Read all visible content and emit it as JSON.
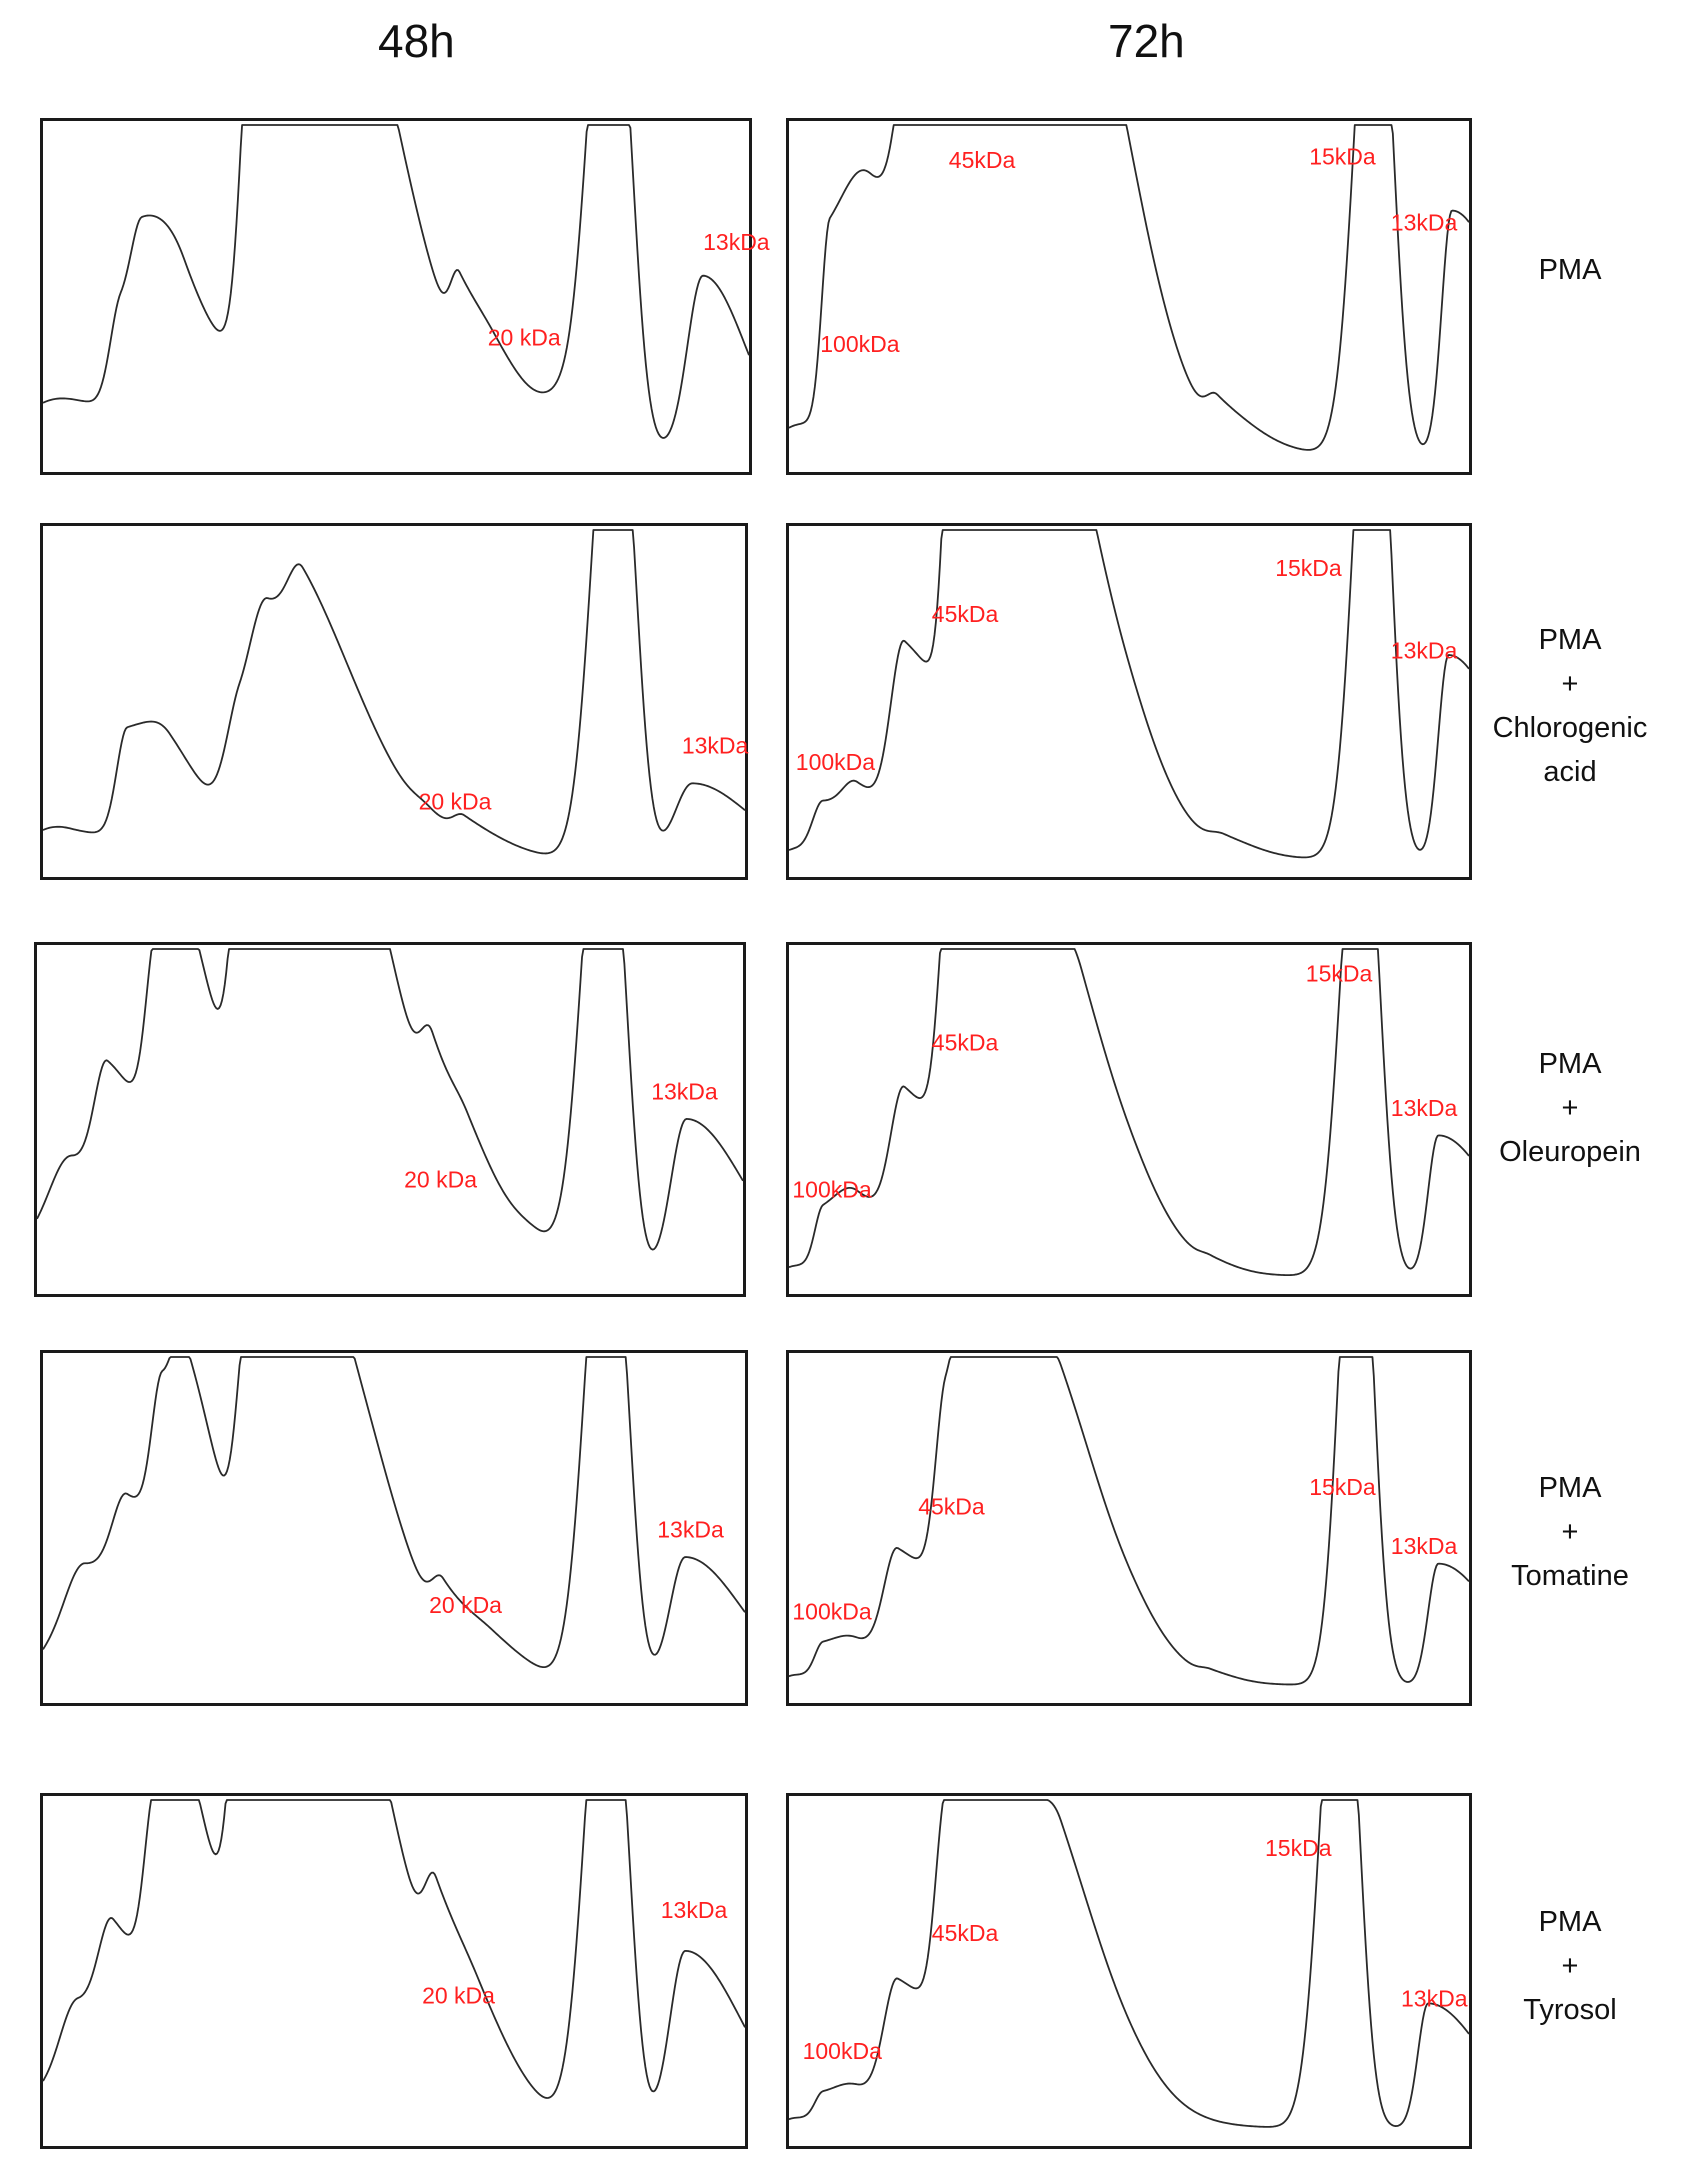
{
  "columns": {
    "h48": "48h",
    "h72": "72h"
  },
  "rows": [
    {
      "label": [
        "PMA"
      ]
    },
    {
      "label": [
        "PMA",
        "+",
        "Chlorogenic",
        "acid"
      ]
    },
    {
      "label": [
        "PMA",
        "+",
        "Oleuropein"
      ]
    },
    {
      "label": [
        "PMA",
        "+",
        "Tomatine"
      ]
    },
    {
      "label": [
        "PMA",
        "+",
        "Tyrosol"
      ]
    }
  ],
  "chart_data": [
    {
      "type": "line",
      "title": "48h - PMA",
      "xlim": [
        0,
        100
      ],
      "ylim": [
        0,
        100
      ],
      "peaks": [
        [
          0,
          6,
          2,
          4
        ],
        [
          7,
          14,
          8,
          12
        ],
        [
          11,
          30,
          1.5,
          6
        ],
        [
          14,
          24,
          1.5,
          5
        ],
        [
          20,
          30,
          4,
          10
        ],
        [
          29.5,
          78,
          1.5,
          14
        ],
        [
          32,
          72,
          2.5,
          13
        ],
        [
          38.5,
          66,
          1.5,
          12
        ],
        [
          48,
          7,
          3,
          4
        ],
        [
          59,
          22,
          1.2,
          8
        ],
        [
          64,
          4,
          3,
          5
        ],
        [
          74,
          10,
          3,
          7
        ],
        [
          79,
          100,
          2.5,
          2
        ],
        [
          82,
          100,
          2.5,
          2
        ],
        [
          93.5,
          54,
          2.2,
          6
        ]
      ],
      "labels": [
        {
          "text": "20 kDa",
          "x": 63,
          "y": 33
        },
        {
          "text": "13kDa",
          "x": 93.5,
          "y": 62
        }
      ]
    },
    {
      "type": "line",
      "title": "72h - PMA",
      "xlim": [
        0,
        100
      ],
      "ylim": [
        0,
        100
      ],
      "peaks": [
        [
          1,
          8,
          3,
          3
        ],
        [
          6,
          58,
          1.2,
          10
        ],
        [
          12,
          36,
          4,
          8
        ],
        [
          18,
          70,
          2,
          10
        ],
        [
          24,
          100,
          2.2,
          14
        ],
        [
          28,
          60,
          3,
          12
        ],
        [
          37,
          96,
          3.5,
          10
        ],
        [
          43,
          30,
          3,
          8
        ],
        [
          52,
          6,
          3,
          5
        ],
        [
          63,
          10,
          1.5,
          6
        ],
        [
          85,
          100,
          2.5,
          2
        ],
        [
          87.5,
          100,
          2.5,
          2
        ],
        [
          97.5,
          74,
          1.5,
          8
        ]
      ],
      "labels": [
        {
          "text": "100kDa",
          "x": 4.6,
          "y": 31
        },
        {
          "text": "45kDa",
          "x": 23.5,
          "y": 87
        },
        {
          "text": "15kDa",
          "x": 76.5,
          "y": 88
        },
        {
          "text": "13kDa",
          "x": 88.5,
          "y": 68
        }
      ]
    },
    {
      "type": "line",
      "title": "48h - PMA + Chlorogenic acid",
      "xlim": [
        0,
        100
      ],
      "ylim": [
        0,
        100
      ],
      "peaks": [
        [
          0,
          3,
          2,
          3
        ],
        [
          4,
          8,
          5,
          12
        ],
        [
          12,
          32,
          1.5,
          7
        ],
        [
          18,
          12,
          3,
          8
        ],
        [
          28,
          32,
          2,
          10
        ],
        [
          32,
          45,
          2.5,
          12
        ],
        [
          37,
          25,
          2,
          10
        ],
        [
          55,
          3,
          2,
          4
        ],
        [
          60,
          7,
          1.5,
          6
        ],
        [
          80,
          100,
          2.5,
          2
        ],
        [
          83,
          100,
          2.5,
          2
        ],
        [
          92.5,
          23,
          2.5,
          8
        ]
      ],
      "labels": [
        {
          "text": "20 kDa",
          "x": 53.5,
          "y": 15
        },
        {
          "text": "13kDa",
          "x": 91,
          "y": 32
        }
      ]
    },
    {
      "type": "line",
      "title": "72h - PMA + Chlorogenic acid",
      "xlim": [
        0,
        100
      ],
      "ylim": [
        0,
        100
      ],
      "peaks": [
        [
          1,
          3,
          2,
          3
        ],
        [
          5,
          16,
          1.5,
          6
        ],
        [
          10,
          12,
          2,
          6
        ],
        [
          17,
          58,
          2,
          10
        ],
        [
          24,
          88,
          1.3,
          14
        ],
        [
          27,
          60,
          2,
          10
        ],
        [
          36,
          68,
          3.5,
          10
        ],
        [
          44,
          15,
          2.5,
          8
        ],
        [
          52,
          3,
          3,
          4
        ],
        [
          64,
          4,
          2,
          5
        ],
        [
          85,
          100,
          2.5,
          2
        ],
        [
          87,
          100,
          2.5,
          2
        ],
        [
          97,
          62,
          1.5,
          8
        ]
      ],
      "labels": [
        {
          "text": "100kDa",
          "x": 1,
          "y": 27
        },
        {
          "text": "45kDa",
          "x": 21,
          "y": 72
        },
        {
          "text": "15kDa",
          "x": 71.5,
          "y": 86
        },
        {
          "text": "13kDa",
          "x": 88.5,
          "y": 61
        }
      ]
    },
    {
      "type": "line",
      "title": "48h - PMA + Oleuropein",
      "xlim": [
        0,
        100
      ],
      "ylim": [
        0,
        100
      ],
      "peaks": [
        [
          0,
          10,
          3,
          5
        ],
        [
          5,
          30,
          3,
          10
        ],
        [
          10,
          38,
          1.8,
          8
        ],
        [
          17,
          62,
          1.5,
          10
        ],
        [
          20,
          36,
          1.5,
          6
        ],
        [
          29,
          76,
          1.5,
          14
        ],
        [
          32,
          76,
          2,
          14
        ],
        [
          37,
          62,
          1.5,
          12
        ],
        [
          48,
          8,
          3,
          5
        ],
        [
          56,
          25,
          1.5,
          8
        ],
        [
          61,
          6,
          2,
          5
        ],
        [
          71,
          5,
          3,
          6
        ],
        [
          79,
          100,
          2.5,
          2
        ],
        [
          82,
          100,
          2.5,
          2
        ],
        [
          92,
          48,
          2.2,
          8
        ]
      ],
      "labels": [
        {
          "text": "20 kDa",
          "x": 52,
          "y": 27
        },
        {
          "text": "13kDa",
          "x": 87,
          "y": 54
        }
      ]
    },
    {
      "type": "line",
      "title": "72h - PMA + Oleuropein",
      "xlim": [
        0,
        100
      ],
      "ylim": [
        0,
        100
      ],
      "peaks": [
        [
          1,
          3,
          2,
          3
        ],
        [
          5,
          17,
          1.2,
          6
        ],
        [
          10,
          14,
          3,
          8
        ],
        [
          17,
          46,
          2,
          10
        ],
        [
          23.5,
          67,
          1.5,
          14
        ],
        [
          26,
          48,
          2,
          10
        ],
        [
          36,
          48,
          3.5,
          10
        ],
        [
          43,
          18,
          2.5,
          8
        ],
        [
          52,
          2,
          3,
          4
        ],
        [
          62,
          2,
          1.5,
          4
        ],
        [
          83,
          95,
          2.5,
          2
        ],
        [
          85.5,
          95,
          2.5,
          2
        ],
        [
          95.5,
          43,
          1.5,
          8
        ]
      ],
      "labels": [
        {
          "text": "100kDa",
          "x": 0.5,
          "y": 24
        },
        {
          "text": "45kDa",
          "x": 21,
          "y": 69
        },
        {
          "text": "15kDa",
          "x": 76,
          "y": 90
        },
        {
          "text": "13kDa",
          "x": 88.5,
          "y": 49
        }
      ]
    },
    {
      "type": "line",
      "title": "48h - PMA + Tomatine",
      "xlim": [
        0,
        100
      ],
      "ylim": [
        0,
        100
      ],
      "peaks": [
        [
          0,
          6,
          3,
          3
        ],
        [
          6,
          36,
          3,
          10
        ],
        [
          12,
          28,
          2,
          8
        ],
        [
          17,
          49,
          1.5,
          8
        ],
        [
          20,
          30,
          1.5,
          6
        ],
        [
          29,
          56,
          1.5,
          12
        ],
        [
          31.5,
          66,
          2,
          12
        ],
        [
          36.5,
          47,
          1.5,
          10
        ],
        [
          48,
          5,
          4,
          5
        ],
        [
          57,
          15,
          1.5,
          8
        ],
        [
          64,
          3,
          3,
          5
        ],
        [
          79,
          100,
          2.5,
          2
        ],
        [
          82,
          100,
          2.5,
          2
        ],
        [
          91.5,
          39,
          2.2,
          8
        ]
      ],
      "labels": [
        {
          "text": "20 kDa",
          "x": 55,
          "y": 22
        },
        {
          "text": "13kDa",
          "x": 87.5,
          "y": 45
        }
      ]
    },
    {
      "type": "line",
      "title": "72h - PMA + Tomatine",
      "xlim": [
        0,
        100
      ],
      "ylim": [
        0,
        100
      ],
      "peaks": [
        [
          1,
          3,
          2,
          3
        ],
        [
          5,
          10,
          1.2,
          5
        ],
        [
          10,
          8,
          3,
          6
        ],
        [
          16,
          36,
          2,
          10
        ],
        [
          23,
          52,
          1.5,
          14
        ],
        [
          26,
          40,
          2,
          10
        ],
        [
          36,
          33,
          3.5,
          10
        ],
        [
          40,
          25,
          2.5,
          8
        ],
        [
          52,
          2,
          3,
          4
        ],
        [
          62,
          2,
          1.5,
          4
        ],
        [
          82.5,
          97,
          2.2,
          2
        ],
        [
          84.5,
          97,
          2.2,
          2
        ],
        [
          95.5,
          37,
          1.5,
          8
        ]
      ],
      "labels": [
        {
          "text": "100kDa",
          "x": 0.5,
          "y": 20
        },
        {
          "text": "45kDa",
          "x": 19,
          "y": 52
        },
        {
          "text": "15kDa",
          "x": 76.5,
          "y": 58
        },
        {
          "text": "13kDa",
          "x": 88.5,
          "y": 40
        }
      ]
    },
    {
      "type": "line",
      "title": "48h - PMA + Tyrosol",
      "xlim": [
        0,
        100
      ],
      "ylim": [
        0,
        100
      ],
      "peaks": [
        [
          0,
          10,
          3,
          5
        ],
        [
          5,
          32,
          2.5,
          8
        ],
        [
          10,
          36,
          2,
          8
        ],
        [
          16,
          60,
          1.5,
          10
        ],
        [
          19,
          42,
          1.5,
          6
        ],
        [
          28,
          78,
          1.5,
          14
        ],
        [
          31,
          75,
          2,
          14
        ],
        [
          36,
          76,
          1.5,
          12
        ],
        [
          47,
          5,
          4,
          5
        ],
        [
          56,
          30,
          1.5,
          8
        ],
        [
          62,
          5,
          3,
          5
        ],
        [
          79,
          100,
          2.5,
          2
        ],
        [
          82,
          100,
          2.5,
          2
        ],
        [
          91.5,
          54,
          2.2,
          8
        ]
      ],
      "labels": [
        {
          "text": "20 kDa",
          "x": 54,
          "y": 38
        },
        {
          "text": "13kDa",
          "x": 88,
          "y": 64
        }
      ]
    },
    {
      "type": "line",
      "title": "72h - PMA + Tyrosol",
      "xlim": [
        0,
        100
      ],
      "ylim": [
        0,
        100
      ],
      "peaks": [
        [
          1,
          3,
          2,
          3
        ],
        [
          5,
          8,
          1.2,
          5
        ],
        [
          10,
          8,
          3,
          6
        ],
        [
          16,
          40,
          2,
          10
        ],
        [
          23,
          58,
          1.5,
          14
        ],
        [
          26,
          42,
          2,
          10
        ],
        [
          36,
          28,
          3.5,
          10
        ],
        [
          40,
          22,
          2.5,
          8
        ],
        [
          52,
          1,
          3,
          4
        ],
        [
          80,
          98,
          2.5,
          2
        ],
        [
          82.5,
          98,
          2.5,
          2
        ],
        [
          94,
          38,
          1.5,
          8
        ]
      ],
      "labels": [
        {
          "text": "100kDa",
          "x": 2,
          "y": 21
        },
        {
          "text": "45kDa",
          "x": 21,
          "y": 57
        },
        {
          "text": "15kDa",
          "x": 70,
          "y": 83
        },
        {
          "text": "13kDa",
          "x": 90,
          "y": 37
        }
      ]
    }
  ]
}
